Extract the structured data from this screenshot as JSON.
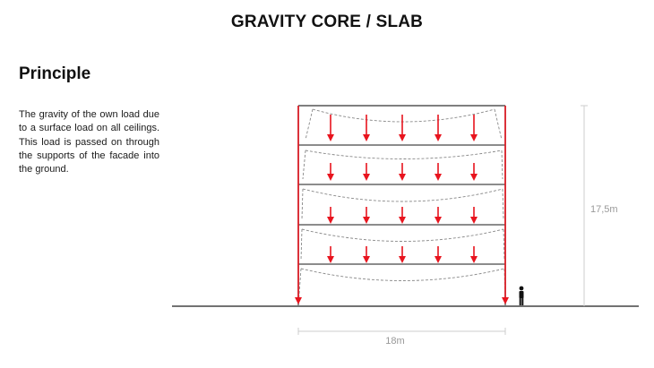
{
  "page": {
    "title": "GRAVITY CORE / SLAB",
    "section_heading": "Principle",
    "description": "The gravity of the own load due to a surface load on all ceilings. This load is passed on through the supports of the facade into the ground."
  },
  "diagram": {
    "height_label": "17,5m",
    "width_label": "18m",
    "floors_with_loads": 4,
    "load_arrows_per_floor": 5,
    "colors": {
      "load_arrow": "#e8141e",
      "structure": "#555555",
      "dimension": "#cccccc",
      "deflection": "#888888"
    },
    "icons": [
      "human-figure-icon"
    ]
  }
}
